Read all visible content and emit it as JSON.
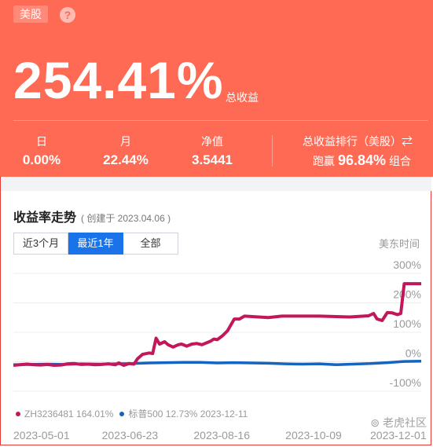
{
  "header": {
    "market": "美股",
    "help_icon": "question-icon",
    "total_return": "254.41%",
    "total_return_label": "总收益",
    "stats": {
      "day_label": "日",
      "day_value": "0.00%",
      "month_label": "月",
      "month_value": "22.44%",
      "nav_label": "净值",
      "nav_value": "3.5441"
    },
    "rank": {
      "title": "总收益排行（美股）⇄",
      "prefix": "跑赢",
      "value": "96.84%",
      "suffix": "组合"
    },
    "background_color": "#ff6a55"
  },
  "chart_section": {
    "title": "收益率走势",
    "created": "( 创建于 2023.04.06 )",
    "tabs": [
      "近3个月",
      "最近1年",
      "全部"
    ],
    "active_tab": "最近1年",
    "timezone": "美东时间",
    "legend": {
      "portfolio": "ZH3236481 164.01%",
      "benchmark": "标普500 12.73% 2023-12-11"
    },
    "watermark": "老虎社区"
  },
  "chart_data": {
    "type": "line",
    "ylabels": [
      "300%",
      "200%",
      "100%",
      "0%",
      "-100%"
    ],
    "yticks": [
      300,
      200,
      100,
      0,
      -100
    ],
    "ylim": [
      -100,
      300
    ],
    "xlabels": [
      "2023-05-01",
      "2023-06-23",
      "2023-08-16",
      "2023-10-09",
      "2023-12-01"
    ],
    "x_ticks_days": [
      0,
      53,
      107,
      161,
      214
    ],
    "series": [
      {
        "name": "ZH3236481",
        "color": "#c2185b",
        "points": [
          [
            0,
            -12
          ],
          [
            4,
            -10
          ],
          [
            8,
            -8
          ],
          [
            12,
            -10
          ],
          [
            16,
            -11
          ],
          [
            20,
            -9
          ],
          [
            24,
            -12
          ],
          [
            28,
            -11
          ],
          [
            32,
            -7
          ],
          [
            36,
            -6
          ],
          [
            40,
            -9
          ],
          [
            44,
            -8
          ],
          [
            48,
            -10
          ],
          [
            52,
            -9
          ],
          [
            56,
            -7
          ],
          [
            60,
            -10
          ],
          [
            62,
            -4
          ],
          [
            65,
            -12
          ],
          [
            68,
            -6
          ],
          [
            71,
            -8
          ],
          [
            73,
            10
          ],
          [
            76,
            25
          ],
          [
            80,
            30
          ],
          [
            82,
            28
          ],
          [
            84,
            80
          ],
          [
            86,
            60
          ],
          [
            89,
            68
          ],
          [
            91,
            58
          ],
          [
            94,
            50
          ],
          [
            97,
            58
          ],
          [
            99,
            60
          ],
          [
            102,
            53
          ],
          [
            105,
            60
          ],
          [
            108,
            62
          ],
          [
            111,
            58
          ],
          [
            114,
            65
          ],
          [
            116,
            70
          ],
          [
            118,
            77
          ],
          [
            120,
            75
          ],
          [
            123,
            88
          ],
          [
            126,
            105
          ],
          [
            130,
            145
          ],
          [
            133,
            145
          ],
          [
            136,
            155
          ],
          [
            150,
            150
          ],
          [
            158,
            155
          ],
          [
            162,
            155
          ],
          [
            180,
            155
          ],
          [
            198,
            152
          ],
          [
            209,
            156
          ],
          [
            212,
            164
          ],
          [
            214,
            145
          ],
          [
            217,
            140
          ],
          [
            220,
            167
          ],
          [
            223,
            166
          ],
          [
            226,
            160
          ],
          [
            228,
            164
          ],
          [
            230,
            265
          ],
          [
            240,
            265
          ]
        ]
      },
      {
        "name": "标普500",
        "color": "#1565c0",
        "points": [
          [
            0,
            -10
          ],
          [
            10,
            -9
          ],
          [
            20,
            -8
          ],
          [
            30,
            -9
          ],
          [
            40,
            -7
          ],
          [
            50,
            -8
          ],
          [
            60,
            -7
          ],
          [
            70,
            -6
          ],
          [
            80,
            -4
          ],
          [
            90,
            -3
          ],
          [
            100,
            -2
          ],
          [
            110,
            -2
          ],
          [
            120,
            -4
          ],
          [
            130,
            -3
          ],
          [
            140,
            -4
          ],
          [
            150,
            -5
          ],
          [
            160,
            -7
          ],
          [
            170,
            -8
          ],
          [
            180,
            -7
          ],
          [
            190,
            -10
          ],
          [
            200,
            -8
          ],
          [
            210,
            -6
          ],
          [
            220,
            -3
          ],
          [
            230,
            1
          ],
          [
            240,
            2
          ]
        ]
      }
    ]
  }
}
